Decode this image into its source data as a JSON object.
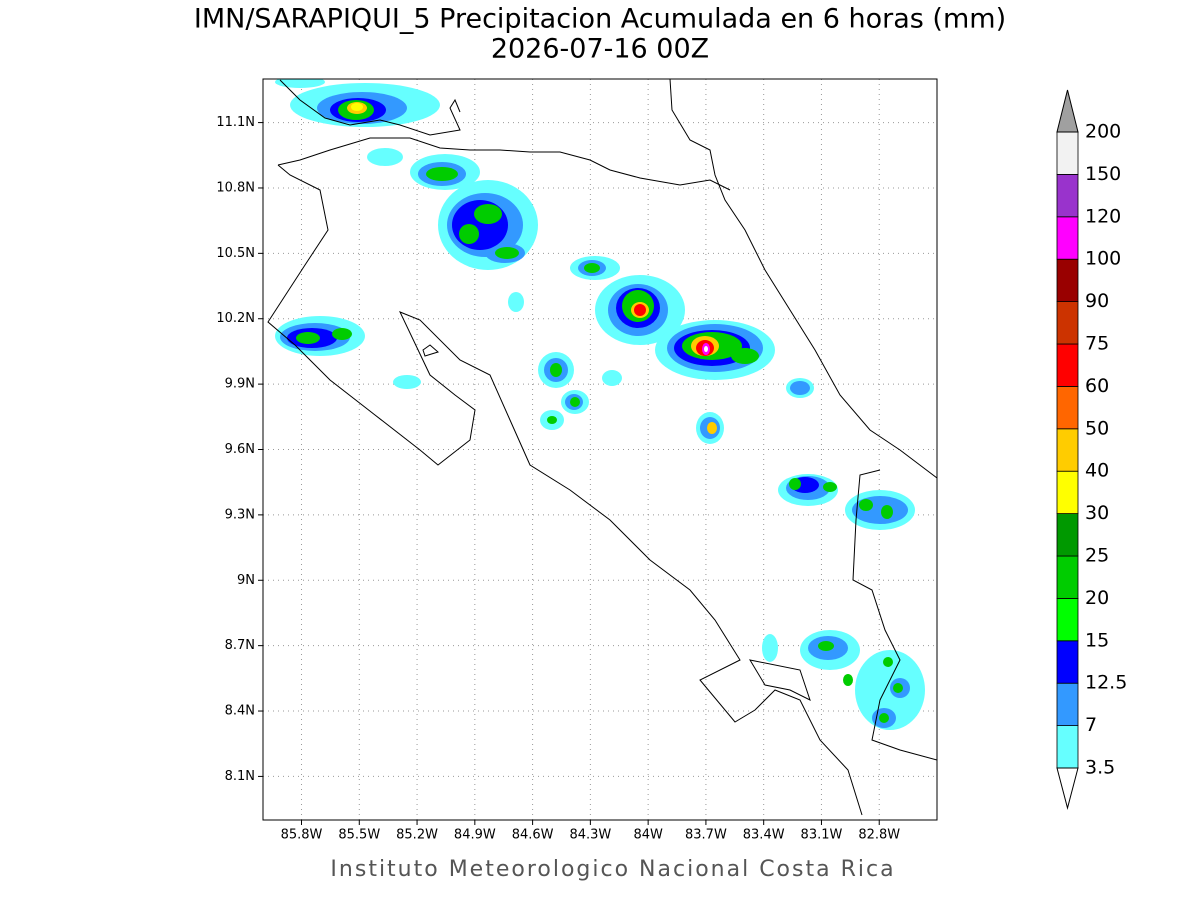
{
  "map": {
    "title": "IMN/SARAPIQUI_5 Precipitacion Acumulada en 6 horas (mm)",
    "subtitle": "2026-07-16 00Z",
    "footer": "Instituto Meteorologico Nacional Costa Rica",
    "xlim": [
      -86.0,
      -82.5
    ],
    "ylim": [
      7.9,
      11.3
    ],
    "xticks": [
      {
        "value": -85.8,
        "label": "85.8W"
      },
      {
        "value": -85.5,
        "label": "85.5W"
      },
      {
        "value": -85.2,
        "label": "85.2W"
      },
      {
        "value": -84.9,
        "label": "84.9W"
      },
      {
        "value": -84.6,
        "label": "84.6W"
      },
      {
        "value": -84.3,
        "label": "84.3W"
      },
      {
        "value": -84.0,
        "label": "84W"
      },
      {
        "value": -83.7,
        "label": "83.7W"
      },
      {
        "value": -83.4,
        "label": "83.4W"
      },
      {
        "value": -83.1,
        "label": "83.1W"
      },
      {
        "value": -82.8,
        "label": "82.8W"
      }
    ],
    "yticks": [
      {
        "value": 8.1,
        "label": "8.1N"
      },
      {
        "value": 8.4,
        "label": "8.4N"
      },
      {
        "value": 8.7,
        "label": "8.7N"
      },
      {
        "value": 9.0,
        "label": "9N"
      },
      {
        "value": 9.3,
        "label": "9.3N"
      },
      {
        "value": 9.6,
        "label": "9.6N"
      },
      {
        "value": 9.9,
        "label": "9.9N"
      },
      {
        "value": 10.2,
        "label": "10.2N"
      },
      {
        "value": 10.5,
        "label": "10.5N"
      },
      {
        "value": 10.8,
        "label": "10.8N"
      },
      {
        "value": 11.1,
        "label": "11.1N"
      }
    ],
    "grid": true,
    "colorbar": {
      "levels": [
        3.5,
        7,
        12.5,
        15,
        20,
        25,
        30,
        40,
        50,
        60,
        75,
        90,
        100,
        120,
        150,
        200
      ],
      "colors": [
        "#66ffff",
        "#3399ff",
        "#0000ff",
        "#00ff00",
        "#00cc00",
        "#009900",
        "#ffff00",
        "#ffcc00",
        "#ff6600",
        "#ff0000",
        "#cc3300",
        "#990000",
        "#ff00ff",
        "#9933cc",
        "#f2f2f2"
      ],
      "over_color": "#a0a0a0",
      "under_color": "#ffffff"
    }
  }
}
